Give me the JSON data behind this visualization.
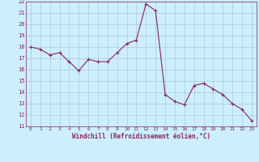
{
  "x": [
    0,
    1,
    2,
    3,
    4,
    5,
    6,
    7,
    8,
    9,
    10,
    11,
    12,
    13,
    14,
    15,
    16,
    17,
    18,
    19,
    20,
    21,
    22,
    23
  ],
  "y": [
    18.0,
    17.8,
    17.3,
    17.5,
    16.7,
    15.9,
    16.9,
    16.7,
    16.7,
    17.5,
    18.3,
    18.6,
    21.8,
    21.2,
    13.8,
    13.2,
    12.9,
    14.6,
    14.8,
    14.3,
    13.8,
    13.0,
    12.5,
    11.5
  ],
  "line_color": "#882266",
  "marker": "+",
  "marker_size": 4,
  "bg_color": "#cceeff",
  "grid_color": "#aacccc",
  "xlabel": "Windchill (Refroidissement éolien,°C)",
  "xlabel_color": "#882266",
  "xlim": [
    -0.5,
    23.5
  ],
  "ylim": [
    11,
    22
  ],
  "xticks": [
    0,
    1,
    2,
    3,
    4,
    5,
    6,
    7,
    8,
    9,
    10,
    11,
    12,
    13,
    14,
    15,
    16,
    17,
    18,
    19,
    20,
    21,
    22,
    23
  ],
  "yticks": [
    11,
    12,
    13,
    14,
    15,
    16,
    17,
    18,
    19,
    20,
    21,
    22
  ],
  "tick_color": "#882266",
  "spine_color": "#882266"
}
